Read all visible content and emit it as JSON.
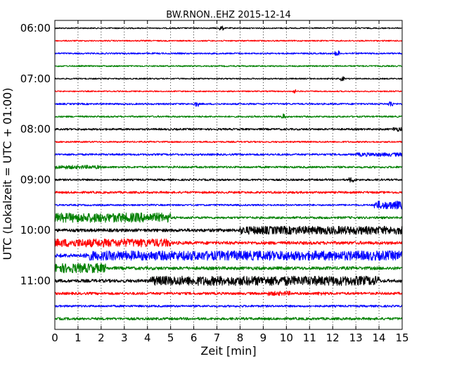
{
  "chart_data": {
    "type": "line",
    "title": "BW.RNON..EHZ 2015-12-14",
    "xlabel": "Zeit  [min]",
    "ylabel": "UTC (Lokalzeit = UTC + 01:00)",
    "xlim": [
      0,
      15
    ],
    "xticks": [
      "0",
      "1",
      "2",
      "3",
      "4",
      "5",
      "6",
      "7",
      "8",
      "9",
      "10",
      "11",
      "12",
      "13",
      "14",
      "15"
    ],
    "yticks": [
      "06:00",
      "07:00",
      "08:00",
      "09:00",
      "10:00",
      "11:00"
    ],
    "grid": "vertical dotted",
    "color_cycle": [
      "#000000",
      "#ff0000",
      "#0000ff",
      "#008000"
    ],
    "series": [
      {
        "start": "06:00",
        "color": "#000000",
        "base": 0.1,
        "bursts": [
          {
            "x0": 7.1,
            "x1": 7.3,
            "amp": 0.35
          }
        ]
      },
      {
        "start": "06:15",
        "color": "#ff0000",
        "base": 0.1,
        "bursts": []
      },
      {
        "start": "06:30",
        "color": "#0000ff",
        "base": 0.12,
        "bursts": [
          {
            "x0": 12.1,
            "x1": 12.3,
            "amp": 0.45
          }
        ]
      },
      {
        "start": "06:45",
        "color": "#008000",
        "base": 0.11,
        "bursts": []
      },
      {
        "start": "07:00",
        "color": "#000000",
        "base": 0.1,
        "bursts": [
          {
            "x0": 12.3,
            "x1": 12.5,
            "amp": 0.35
          }
        ]
      },
      {
        "start": "07:15",
        "color": "#ff0000",
        "base": 0.1,
        "bursts": [
          {
            "x0": 10.2,
            "x1": 10.4,
            "amp": 0.3
          }
        ]
      },
      {
        "start": "07:30",
        "color": "#0000ff",
        "base": 0.13,
        "bursts": [
          {
            "x0": 6.0,
            "x1": 6.2,
            "amp": 0.4
          },
          {
            "x0": 14.4,
            "x1": 14.6,
            "amp": 0.5
          }
        ]
      },
      {
        "start": "07:45",
        "color": "#008000",
        "base": 0.13,
        "bursts": [
          {
            "x0": 9.8,
            "x1": 10.0,
            "amp": 0.45
          }
        ]
      },
      {
        "start": "08:00",
        "color": "#000000",
        "base": 0.15,
        "bursts": [
          {
            "x0": 14.6,
            "x1": 15.0,
            "amp": 0.35
          }
        ]
      },
      {
        "start": "08:15",
        "color": "#ff0000",
        "base": 0.12,
        "bursts": []
      },
      {
        "start": "08:30",
        "color": "#0000ff",
        "base": 0.15,
        "bursts": [
          {
            "x0": 13.0,
            "x1": 15.0,
            "amp": 0.3
          }
        ]
      },
      {
        "start": "08:45",
        "color": "#008000",
        "base": 0.16,
        "bursts": [
          {
            "x0": 0.0,
            "x1": 2.0,
            "amp": 0.3
          }
        ]
      },
      {
        "start": "09:00",
        "color": "#000000",
        "base": 0.15,
        "bursts": [
          {
            "x0": 12.7,
            "x1": 13.0,
            "amp": 0.4
          }
        ]
      },
      {
        "start": "09:15",
        "color": "#ff0000",
        "base": 0.17,
        "bursts": []
      },
      {
        "start": "09:30",
        "color": "#0000ff",
        "base": 0.13,
        "bursts": [
          {
            "x0": 13.8,
            "x1": 15.0,
            "amp": 0.65
          }
        ]
      },
      {
        "start": "09:45",
        "color": "#008000",
        "base": 0.18,
        "bursts": [
          {
            "x0": 0.0,
            "x1": 5.0,
            "amp": 0.75
          }
        ]
      },
      {
        "start": "10:00",
        "color": "#000000",
        "base": 0.25,
        "bursts": [
          {
            "x0": 8.0,
            "x1": 15.0,
            "amp": 0.65
          }
        ]
      },
      {
        "start": "10:15",
        "color": "#ff0000",
        "base": 0.25,
        "bursts": [
          {
            "x0": 0.0,
            "x1": 5.0,
            "amp": 0.65
          }
        ]
      },
      {
        "start": "10:30",
        "color": "#0000ff",
        "base": 0.3,
        "bursts": [
          {
            "x0": 1.3,
            "x1": 15.0,
            "amp": 0.75
          }
        ]
      },
      {
        "start": "10:45",
        "color": "#008000",
        "base": 0.25,
        "bursts": [
          {
            "x0": 0.0,
            "x1": 2.2,
            "amp": 0.75
          }
        ]
      },
      {
        "start": "11:00",
        "color": "#000000",
        "base": 0.25,
        "bursts": [
          {
            "x0": 4.1,
            "x1": 14.0,
            "amp": 0.75
          }
        ]
      },
      {
        "start": "11:15",
        "color": "#ff0000",
        "base": 0.2,
        "bursts": [
          {
            "x0": 9.2,
            "x1": 10.2,
            "amp": 0.35
          },
          {
            "x0": 11.3,
            "x1": 11.7,
            "amp": 0.3
          }
        ]
      },
      {
        "start": "11:30",
        "color": "#0000ff",
        "base": 0.16,
        "bursts": []
      },
      {
        "start": "11:45",
        "color": "#008000",
        "base": 0.2,
        "bursts": []
      }
    ]
  }
}
